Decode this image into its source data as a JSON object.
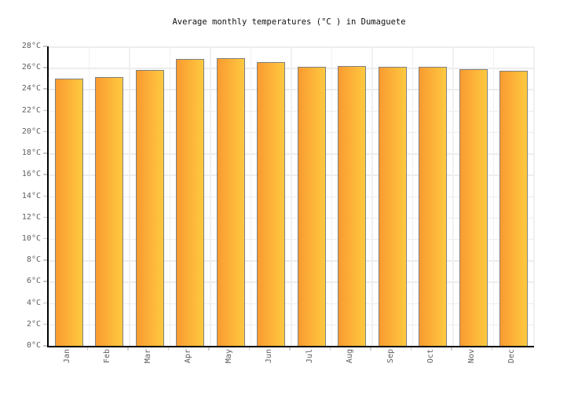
{
  "header": {
    "title": "Average monthly temperatures (°C ) in Dumaguete"
  },
  "chart_data": {
    "type": "bar",
    "title": "Average monthly temperatures (°C ) in Dumaguete",
    "categories": [
      "Jan",
      "Feb",
      "Mar",
      "Apr",
      "May",
      "Jun",
      "Jul",
      "Aug",
      "Sep",
      "Oct",
      "Nov",
      "Dec"
    ],
    "values": [
      25.0,
      25.1,
      25.8,
      26.8,
      26.9,
      26.5,
      26.1,
      26.2,
      26.1,
      26.1,
      25.9,
      25.7
    ],
    "xlabel": "",
    "ylabel": "",
    "unit": "°C",
    "ylim": [
      0,
      28
    ],
    "ytick_step": 2,
    "ytick_labels": [
      "0°C",
      "2°C",
      "4°C",
      "6°C",
      "8°C",
      "10°C",
      "12°C",
      "14°C",
      "16°C",
      "18°C",
      "20°C",
      "22°C",
      "24°C",
      "26°C",
      "28°C"
    ],
    "grid": true,
    "legend": false,
    "colors": {
      "bar_gradient_start": "#F99B31",
      "bar_gradient_end": "#FFC940",
      "bar_border": "#808080",
      "gridline": "#ededed",
      "axis": "#000000",
      "tick": "#c8c8c8",
      "label_text": "#5f5f5f",
      "title_text": "#111111"
    }
  }
}
